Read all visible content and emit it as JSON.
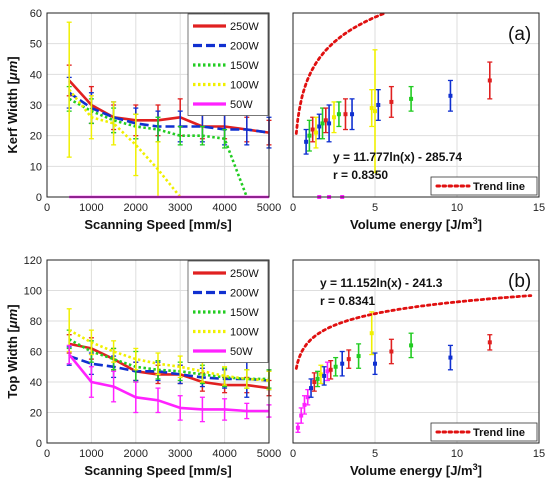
{
  "chart_data": [
    {
      "id": "a-left",
      "type": "line",
      "panel": "a",
      "xlabel": "Scanning Speed [mm/s]",
      "ylabel_text": "Kerf Width [",
      "ylabel_unit": "μm",
      "ylabel_close": "]",
      "xlim": [
        0,
        5000
      ],
      "ylim": [
        0,
        60
      ],
      "xticks": [
        "0",
        "1000",
        "2000",
        "3000",
        "4000",
        "5000"
      ],
      "yticks": [
        "0",
        "10",
        "20",
        "30",
        "40",
        "50",
        "60"
      ],
      "grid": true,
      "legend": "top-right",
      "x": [
        500,
        1000,
        1500,
        2000,
        2500,
        3000,
        3500,
        4000,
        4500,
        5000
      ],
      "series": [
        {
          "name": "250W",
          "color": "#e02020",
          "style": "solid",
          "x": [
            500,
            1000,
            1500,
            2000,
            2500,
            3000,
            3500,
            4000,
            4500,
            5000
          ],
          "values": [
            38,
            30,
            26,
            25,
            25,
            26,
            23,
            23,
            22,
            21
          ],
          "err": [
            5,
            6,
            4,
            5,
            5,
            6,
            4,
            4,
            4,
            4
          ]
        },
        {
          "name": "200W",
          "color": "#1030d0",
          "style": "dash",
          "x": [
            500,
            1000,
            1500,
            2000,
            2500,
            3000,
            3500,
            4000,
            4500,
            5000
          ],
          "values": [
            34,
            29,
            26,
            24,
            23,
            23,
            23,
            22,
            22,
            21
          ],
          "err": [
            5,
            5,
            5,
            5,
            5,
            5,
            5,
            5,
            5,
            5
          ]
        },
        {
          "name": "150W",
          "color": "#22cc22",
          "style": "dot",
          "x": [
            500,
            1000,
            1500,
            2000,
            2500,
            3000,
            3500,
            4000,
            4500
          ],
          "values": [
            32,
            28,
            25,
            23,
            22,
            20,
            20,
            19,
            0
          ],
          "err": [
            4,
            4,
            4,
            4,
            4,
            3,
            3,
            3,
            0
          ]
        },
        {
          "name": "100W",
          "color": "#f0f000",
          "style": "dot",
          "x": [
            500,
            1000,
            1500,
            2000,
            2500,
            3000
          ],
          "values": [
            35,
            26,
            24,
            17,
            9,
            0
          ],
          "err": [
            22,
            7,
            7,
            10,
            9,
            0
          ]
        },
        {
          "name": "50W",
          "color": "#ff22ff",
          "style": "solid",
          "x": [
            500,
            1000,
            1500,
            2000,
            2500,
            3000,
            3500,
            4000,
            4500,
            5000
          ],
          "values": [
            0,
            0,
            0,
            0,
            0,
            0,
            0,
            0,
            0,
            0
          ],
          "err": [
            0,
            0,
            0,
            0,
            0,
            0,
            0,
            0,
            0,
            0
          ]
        }
      ]
    },
    {
      "id": "a-right",
      "type": "scatter",
      "panel": "a",
      "xlabel_text": "Volume energy [J/m",
      "xlabel_sup": "3",
      "xlabel_close": "]",
      "xlim": [
        0,
        15
      ],
      "ylim": [
        0,
        60
      ],
      "xticks": [
        "0",
        "5",
        "10",
        "15"
      ],
      "grid": true,
      "legend": "bottom-right",
      "trend_name": "Trend line",
      "trend": {
        "a": 11.777,
        "b": -285.74
      },
      "equation": "y = 11.777ln(x) - 285.74",
      "r_text": "r = 0.8350",
      "panel_label": "(a)",
      "points": [
        {
          "x": 0.8,
          "y": 18,
          "err": 4,
          "color": "#1030d0"
        },
        {
          "x": 1.0,
          "y": 20,
          "err": 5,
          "color": "#22cc22"
        },
        {
          "x": 1.2,
          "y": 22,
          "err": 4,
          "color": "#e02020"
        },
        {
          "x": 1.4,
          "y": 21,
          "err": 5,
          "color": "#f0f000"
        },
        {
          "x": 1.6,
          "y": 23,
          "err": 4,
          "color": "#1030d0"
        },
        {
          "x": 1.8,
          "y": 24,
          "err": 5,
          "color": "#22cc22"
        },
        {
          "x": 2.0,
          "y": 25,
          "err": 4,
          "color": "#e02020"
        },
        {
          "x": 2.2,
          "y": 24,
          "err": 6,
          "color": "#1030d0"
        },
        {
          "x": 2.5,
          "y": 26,
          "err": 5,
          "color": "#f0f000"
        },
        {
          "x": 2.8,
          "y": 27,
          "err": 4,
          "color": "#22cc22"
        },
        {
          "x": 3.2,
          "y": 27,
          "err": 5,
          "color": "#e02020"
        },
        {
          "x": 3.6,
          "y": 27,
          "err": 5,
          "color": "#1030d0"
        },
        {
          "x": 4.8,
          "y": 29,
          "err": 6,
          "color": "#f0f000"
        },
        {
          "x": 5.0,
          "y": 28,
          "err": 20,
          "color": "#f0f000"
        },
        {
          "x": 5.2,
          "y": 30,
          "err": 5,
          "color": "#1030d0"
        },
        {
          "x": 6.0,
          "y": 31,
          "err": 5,
          "color": "#e02020"
        },
        {
          "x": 7.2,
          "y": 32,
          "err": 4,
          "color": "#22cc22"
        },
        {
          "x": 9.6,
          "y": 33,
          "err": 5,
          "color": "#1030d0"
        },
        {
          "x": 12.0,
          "y": 38,
          "err": 6,
          "color": "#e02020"
        },
        {
          "x": 1.6,
          "y": 0,
          "err": 0,
          "color": "#ff22ff"
        },
        {
          "x": 2.2,
          "y": 0,
          "err": 0,
          "color": "#ff22ff"
        },
        {
          "x": 3.0,
          "y": 0,
          "err": 0,
          "color": "#ff22ff"
        }
      ]
    },
    {
      "id": "b-left",
      "type": "line",
      "panel": "b",
      "xlabel": "Scanning Speed [mm/s]",
      "ylabel_text": "Top Width [",
      "ylabel_unit": "μm",
      "ylabel_close": "]",
      "xlim": [
        0,
        5000
      ],
      "ylim": [
        0,
        120
      ],
      "xticks": [
        "0",
        "1000",
        "2000",
        "3000",
        "4000",
        "5000"
      ],
      "yticks": [
        "0",
        "20",
        "40",
        "60",
        "80",
        "100",
        "120"
      ],
      "grid": true,
      "legend": "top-right",
      "series": [
        {
          "name": "250W",
          "color": "#e02020",
          "style": "solid",
          "x": [
            500,
            1000,
            1500,
            2000,
            2500,
            3000,
            3500,
            4000,
            4500,
            5000
          ],
          "values": [
            65,
            62,
            55,
            47,
            45,
            45,
            40,
            38,
            38,
            36
          ],
          "err": [
            6,
            7,
            7,
            6,
            6,
            6,
            6,
            5,
            5,
            5
          ]
        },
        {
          "name": "200W",
          "color": "#1030d0",
          "style": "dash",
          "x": [
            500,
            1000,
            1500,
            2000,
            2500,
            3000,
            3500,
            4000,
            4500,
            5000
          ],
          "values": [
            57,
            52,
            50,
            47,
            47,
            45,
            43,
            42,
            42,
            41
          ],
          "err": [
            6,
            7,
            7,
            6,
            6,
            6,
            6,
            6,
            12,
            6
          ]
        },
        {
          "name": "150W",
          "color": "#22cc22",
          "style": "dot",
          "x": [
            500,
            1000,
            1500,
            2000,
            2500,
            3000,
            3500,
            4000,
            4500,
            5000
          ],
          "values": [
            68,
            60,
            55,
            50,
            48,
            47,
            45,
            43,
            42,
            42
          ],
          "err": [
            6,
            7,
            7,
            10,
            6,
            6,
            6,
            6,
            6,
            6
          ]
        },
        {
          "name": "100W",
          "color": "#f0f000",
          "style": "dot",
          "x": [
            500,
            1000,
            1500,
            2000,
            2500,
            3000,
            3500,
            4000,
            4500,
            5000
          ],
          "values": [
            74,
            66,
            60,
            55,
            52,
            50,
            47,
            44,
            42,
            41
          ],
          "err": [
            14,
            8,
            7,
            7,
            7,
            7,
            7,
            6,
            6,
            6
          ]
        },
        {
          "name": "50W",
          "color": "#ff22ff",
          "style": "solid",
          "x": [
            500,
            1000,
            1500,
            2000,
            2500,
            3000,
            3500,
            4000,
            4500,
            5000
          ],
          "values": [
            58,
            40,
            37,
            30,
            28,
            23,
            22,
            22,
            21,
            21
          ],
          "err": [
            6,
            10,
            10,
            10,
            8,
            8,
            8,
            7,
            5,
            4
          ]
        }
      ]
    },
    {
      "id": "b-right",
      "type": "scatter",
      "panel": "b",
      "xlabel_text": "Volume energy [J/m",
      "xlabel_sup": "3",
      "xlabel_close": "]",
      "xlim": [
        0,
        15
      ],
      "ylim": [
        0,
        120
      ],
      "xticks": [
        "0",
        "5",
        "10",
        "15"
      ],
      "grid": true,
      "legend": "bottom-right",
      "trend_name": "Trend line",
      "trend": {
        "a": 11.152,
        "b": -241.3
      },
      "equation": "y = 11.152ln(x) - 241.3",
      "r_text": "r = 0.8341",
      "panel_label": "(b)",
      "points": [
        {
          "x": 0.3,
          "y": 10,
          "err": 3,
          "color": "#ff22ff"
        },
        {
          "x": 0.5,
          "y": 18,
          "err": 5,
          "color": "#ff22ff"
        },
        {
          "x": 0.7,
          "y": 25,
          "err": 6,
          "color": "#ff22ff"
        },
        {
          "x": 0.9,
          "y": 30,
          "err": 5,
          "color": "#ff22ff"
        },
        {
          "x": 1.1,
          "y": 36,
          "err": 6,
          "color": "#1030d0"
        },
        {
          "x": 1.3,
          "y": 40,
          "err": 6,
          "color": "#e02020"
        },
        {
          "x": 1.5,
          "y": 42,
          "err": 5,
          "color": "#22cc22"
        },
        {
          "x": 1.7,
          "y": 45,
          "err": 6,
          "color": "#f0f000"
        },
        {
          "x": 1.9,
          "y": 44,
          "err": 6,
          "color": "#1030d0"
        },
        {
          "x": 2.1,
          "y": 47,
          "err": 6,
          "color": "#ff22ff"
        },
        {
          "x": 2.3,
          "y": 48,
          "err": 6,
          "color": "#e02020"
        },
        {
          "x": 2.6,
          "y": 50,
          "err": 6,
          "color": "#22cc22"
        },
        {
          "x": 3.0,
          "y": 52,
          "err": 8,
          "color": "#1030d0"
        },
        {
          "x": 3.4,
          "y": 55,
          "err": 6,
          "color": "#e02020"
        },
        {
          "x": 4.0,
          "y": 57,
          "err": 8,
          "color": "#22cc22"
        },
        {
          "x": 4.8,
          "y": 72,
          "err": 14,
          "color": "#f0f000"
        },
        {
          "x": 5.0,
          "y": 52,
          "err": 7,
          "color": "#1030d0"
        },
        {
          "x": 6.0,
          "y": 60,
          "err": 8,
          "color": "#e02020"
        },
        {
          "x": 7.2,
          "y": 64,
          "err": 8,
          "color": "#22cc22"
        },
        {
          "x": 9.6,
          "y": 56,
          "err": 8,
          "color": "#1030d0"
        },
        {
          "x": 12.0,
          "y": 66,
          "err": 5,
          "color": "#e02020"
        }
      ]
    }
  ]
}
